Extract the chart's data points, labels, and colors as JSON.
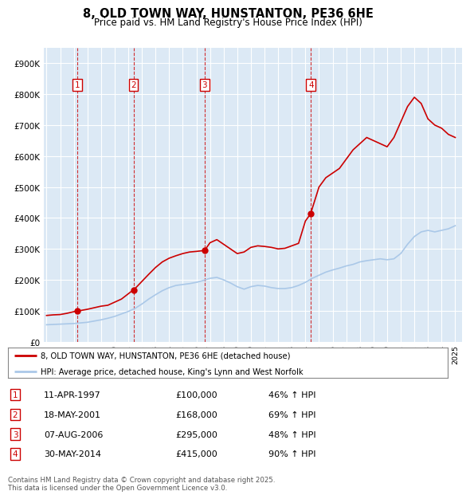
{
  "title": "8, OLD TOWN WAY, HUNSTANTON, PE36 6HE",
  "subtitle": "Price paid vs. HM Land Registry's House Price Index (HPI)",
  "legend_property": "8, OLD TOWN WAY, HUNSTANTON, PE36 6HE (detached house)",
  "legend_hpi": "HPI: Average price, detached house, King's Lynn and West Norfolk",
  "footer": "Contains HM Land Registry data © Crown copyright and database right 2025.\nThis data is licensed under the Open Government Licence v3.0.",
  "ylim": [
    0,
    950000
  ],
  "yticks": [
    0,
    100000,
    200000,
    300000,
    400000,
    500000,
    600000,
    700000,
    800000,
    900000
  ],
  "ytick_labels": [
    "£0",
    "£100K",
    "£200K",
    "£300K",
    "£400K",
    "£500K",
    "£600K",
    "£700K",
    "£800K",
    "£900K"
  ],
  "background_color": "#dce9f5",
  "sale_events": [
    {
      "num": 1,
      "date": "11-APR-1997",
      "price": 100000,
      "year": 1997.27,
      "pct": "46%",
      "dir": "↑"
    },
    {
      "num": 2,
      "date": "18-MAY-2001",
      "price": 168000,
      "year": 2001.38,
      "pct": "69%",
      "dir": "↑"
    },
    {
      "num": 3,
      "date": "07-AUG-2006",
      "price": 295000,
      "year": 2006.6,
      "pct": "48%",
      "dir": "↑"
    },
    {
      "num": 4,
      "date": "30-MAY-2014",
      "price": 415000,
      "year": 2014.41,
      "pct": "90%",
      "dir": "↑"
    }
  ],
  "property_line": {
    "color": "#cc0000",
    "years": [
      1995.0,
      1995.5,
      1996.0,
      1996.5,
      1997.27,
      1997.5,
      1998.0,
      1998.5,
      1999.0,
      1999.5,
      2000.0,
      2000.5,
      2001.0,
      2001.38,
      2001.5,
      2002.0,
      2002.5,
      2003.0,
      2003.5,
      2004.0,
      2004.5,
      2005.0,
      2005.5,
      2006.0,
      2006.6,
      2007.0,
      2007.5,
      2008.0,
      2008.5,
      2009.0,
      2009.5,
      2010.0,
      2010.5,
      2011.0,
      2011.5,
      2012.0,
      2012.5,
      2013.0,
      2013.5,
      2014.0,
      2014.41,
      2014.5,
      2015.0,
      2015.5,
      2016.0,
      2016.5,
      2017.0,
      2017.5,
      2018.0,
      2018.5,
      2019.0,
      2019.5,
      2020.0,
      2020.5,
      2021.0,
      2021.5,
      2022.0,
      2022.5,
      2023.0,
      2023.5,
      2024.0,
      2024.5,
      2025.0
    ],
    "prices": [
      85000,
      87000,
      88000,
      92000,
      100000,
      101000,
      105000,
      110000,
      115000,
      118000,
      128000,
      138000,
      155000,
      168000,
      172000,
      195000,
      218000,
      240000,
      258000,
      270000,
      278000,
      285000,
      290000,
      292000,
      295000,
      320000,
      330000,
      315000,
      300000,
      285000,
      290000,
      305000,
      310000,
      308000,
      305000,
      300000,
      302000,
      310000,
      318000,
      390000,
      415000,
      430000,
      500000,
      530000,
      545000,
      560000,
      590000,
      620000,
      640000,
      660000,
      650000,
      640000,
      630000,
      660000,
      710000,
      760000,
      790000,
      770000,
      720000,
      700000,
      690000,
      670000,
      660000
    ]
  },
  "hpi_line": {
    "color": "#aac8e8",
    "years": [
      1995.0,
      1995.5,
      1996.0,
      1996.5,
      1997.0,
      1997.5,
      1998.0,
      1998.5,
      1999.0,
      1999.5,
      2000.0,
      2000.5,
      2001.0,
      2001.5,
      2002.0,
      2002.5,
      2003.0,
      2003.5,
      2004.0,
      2004.5,
      2005.0,
      2005.5,
      2006.0,
      2006.5,
      2007.0,
      2007.5,
      2008.0,
      2008.5,
      2009.0,
      2009.5,
      2010.0,
      2010.5,
      2011.0,
      2011.5,
      2012.0,
      2012.5,
      2013.0,
      2013.5,
      2014.0,
      2014.5,
      2015.0,
      2015.5,
      2016.0,
      2016.5,
      2017.0,
      2017.5,
      2018.0,
      2018.5,
      2019.0,
      2019.5,
      2020.0,
      2020.5,
      2021.0,
      2021.5,
      2022.0,
      2022.5,
      2023.0,
      2023.5,
      2024.0,
      2024.5,
      2025.0
    ],
    "prices": [
      55000,
      56000,
      57000,
      58000,
      59000,
      61000,
      63000,
      67000,
      71000,
      76000,
      82000,
      90000,
      98000,
      108000,
      122000,
      138000,
      152000,
      165000,
      175000,
      182000,
      185000,
      188000,
      192000,
      198000,
      205000,
      208000,
      200000,
      190000,
      178000,
      170000,
      178000,
      182000,
      180000,
      175000,
      172000,
      172000,
      175000,
      182000,
      192000,
      205000,
      215000,
      225000,
      232000,
      238000,
      245000,
      250000,
      258000,
      262000,
      265000,
      268000,
      265000,
      268000,
      285000,
      315000,
      340000,
      355000,
      360000,
      355000,
      360000,
      365000,
      375000
    ]
  },
  "xlim": [
    1994.8,
    2025.5
  ],
  "xticks": [
    1995,
    1996,
    1997,
    1998,
    1999,
    2000,
    2001,
    2002,
    2003,
    2004,
    2005,
    2006,
    2007,
    2008,
    2009,
    2010,
    2011,
    2012,
    2013,
    2014,
    2015,
    2016,
    2017,
    2018,
    2019,
    2020,
    2021,
    2022,
    2023,
    2024,
    2025
  ]
}
